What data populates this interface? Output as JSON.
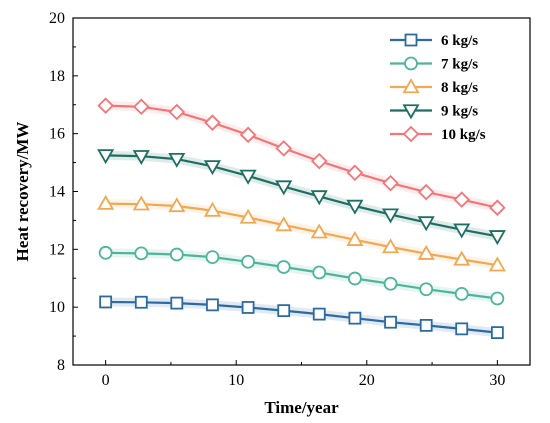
{
  "chart_data": {
    "type": "line",
    "title": "",
    "xlabel": "Time/year",
    "ylabel": "Heat recovery/MW",
    "xlim": [
      -2.5,
      32.5
    ],
    "ylim": [
      8,
      20
    ],
    "xticks": [
      0,
      10,
      20,
      30
    ],
    "yticks": [
      8,
      10,
      12,
      14,
      16,
      18,
      20
    ],
    "grid": false,
    "legend_position": "top-right",
    "x": [
      0,
      2.73,
      5.45,
      8.18,
      10.91,
      13.64,
      16.36,
      19.09,
      21.82,
      24.55,
      27.27,
      30
    ],
    "series": [
      {
        "name": "6 kg/s",
        "marker": "square",
        "color": "#2c6aa0",
        "values": [
          10.18,
          10.17,
          10.14,
          10.08,
          9.99,
          9.88,
          9.76,
          9.62,
          9.48,
          9.37,
          9.25,
          9.12
        ]
      },
      {
        "name": "7 kg/s",
        "marker": "circle",
        "color": "#4fb59a",
        "values": [
          11.88,
          11.86,
          11.82,
          11.73,
          11.57,
          11.39,
          11.2,
          10.99,
          10.81,
          10.62,
          10.46,
          10.3
        ]
      },
      {
        "name": "8 kg/s",
        "marker": "triangle-up",
        "color": "#f0a853",
        "values": [
          13.58,
          13.56,
          13.5,
          13.34,
          13.1,
          12.84,
          12.59,
          12.33,
          12.08,
          11.85,
          11.65,
          11.45
        ]
      },
      {
        "name": "9 kg/s",
        "marker": "triangle-down",
        "color": "#1f6e63",
        "values": [
          15.25,
          15.22,
          15.12,
          14.87,
          14.54,
          14.17,
          13.83,
          13.5,
          13.2,
          12.93,
          12.68,
          12.45
        ]
      },
      {
        "name": "10 kg/s",
        "marker": "diamond",
        "color": "#f0767a",
        "values": [
          16.97,
          16.93,
          16.75,
          16.38,
          15.96,
          15.49,
          15.05,
          14.65,
          14.29,
          13.98,
          13.72,
          13.44
        ]
      }
    ]
  }
}
